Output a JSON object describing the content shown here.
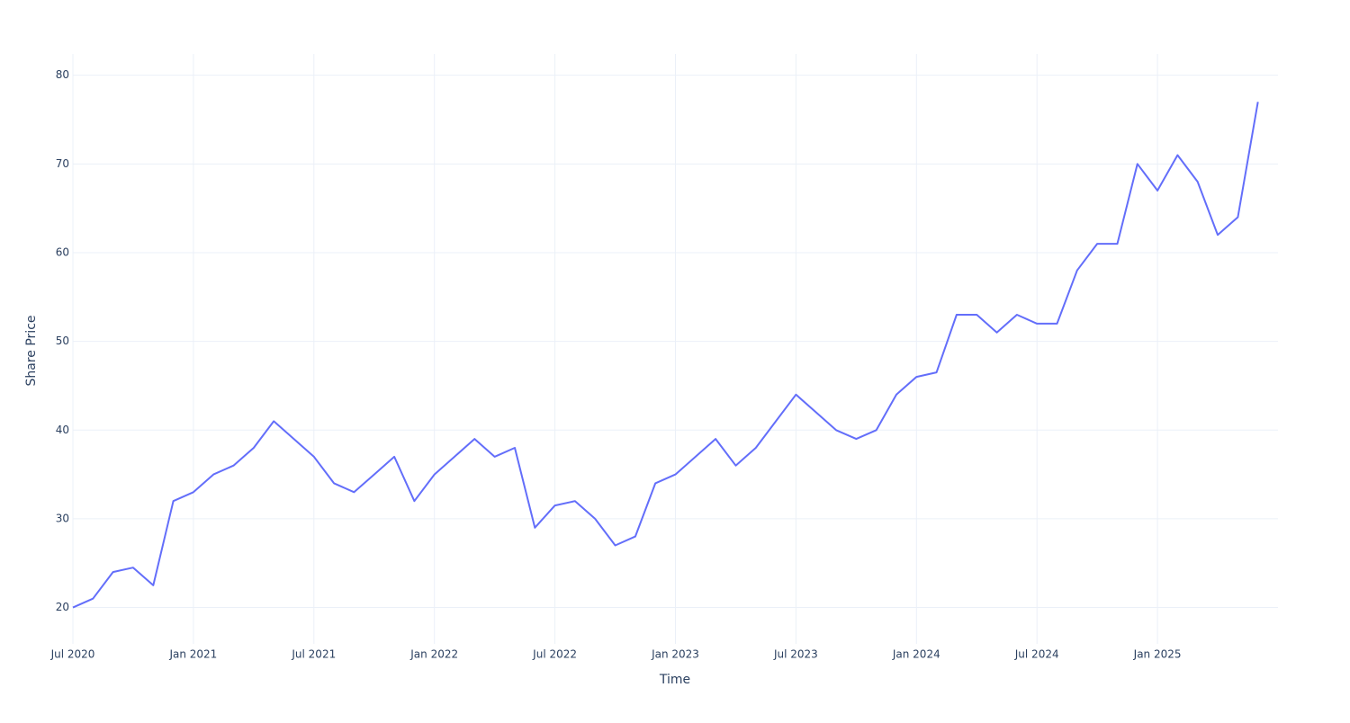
{
  "chart_data": {
    "type": "line",
    "x_label": "Time",
    "y_label": "Share Price",
    "x": [
      "2020-07",
      "2020-08",
      "2020-09",
      "2020-10",
      "2020-11",
      "2020-12",
      "2021-01",
      "2021-02",
      "2021-03",
      "2021-04",
      "2021-05",
      "2021-06",
      "2021-07",
      "2021-08",
      "2021-09",
      "2021-10",
      "2021-11",
      "2021-12",
      "2022-01",
      "2022-02",
      "2022-03",
      "2022-04",
      "2022-05",
      "2022-06",
      "2022-07",
      "2022-08",
      "2022-09",
      "2022-10",
      "2022-11",
      "2022-12",
      "2023-01",
      "2023-02",
      "2023-03",
      "2023-04",
      "2023-05",
      "2023-06",
      "2023-07",
      "2023-08",
      "2023-09",
      "2023-10",
      "2023-11",
      "2023-12",
      "2024-01",
      "2024-02",
      "2024-03",
      "2024-04",
      "2024-05",
      "2024-06",
      "2024-07",
      "2024-08",
      "2024-09",
      "2024-10",
      "2024-11",
      "2024-12",
      "2025-01",
      "2025-02",
      "2025-03",
      "2025-04",
      "2025-05",
      "2025-06"
    ],
    "values": [
      20,
      21,
      24,
      24.5,
      22.5,
      32,
      33,
      35,
      36,
      38,
      41,
      39,
      37,
      34,
      33,
      35,
      37,
      32,
      35,
      37,
      39,
      37,
      38,
      29,
      31.5,
      32,
      30,
      27,
      28,
      34,
      35,
      37,
      39,
      36,
      38,
      41,
      44,
      42,
      40,
      39,
      40,
      44,
      46,
      46.5,
      53,
      53,
      51,
      53,
      52,
      52,
      58,
      61,
      61,
      70,
      67,
      71,
      68,
      62,
      64,
      77
    ],
    "color": "#636efa",
    "xlim": [
      "2020-07",
      "2025-07"
    ],
    "xticks": [
      {
        "value": "2020-07",
        "label": "Jul 2020"
      },
      {
        "value": "2021-01",
        "label": "Jan 2021"
      },
      {
        "value": "2021-07",
        "label": "Jul 2021"
      },
      {
        "value": "2022-01",
        "label": "Jan 2022"
      },
      {
        "value": "2022-07",
        "label": "Jul 2022"
      },
      {
        "value": "2023-01",
        "label": "Jan 2023"
      },
      {
        "value": "2023-07",
        "label": "Jul 2023"
      },
      {
        "value": "2024-01",
        "label": "Jan 2024"
      },
      {
        "value": "2024-07",
        "label": "Jul 2024"
      },
      {
        "value": "2025-01",
        "label": "Jan 2025"
      }
    ],
    "ylim": [
      15.9,
      82.4
    ],
    "yticks": [
      20,
      30,
      40,
      50,
      60,
      70,
      80
    ],
    "grid": true
  }
}
